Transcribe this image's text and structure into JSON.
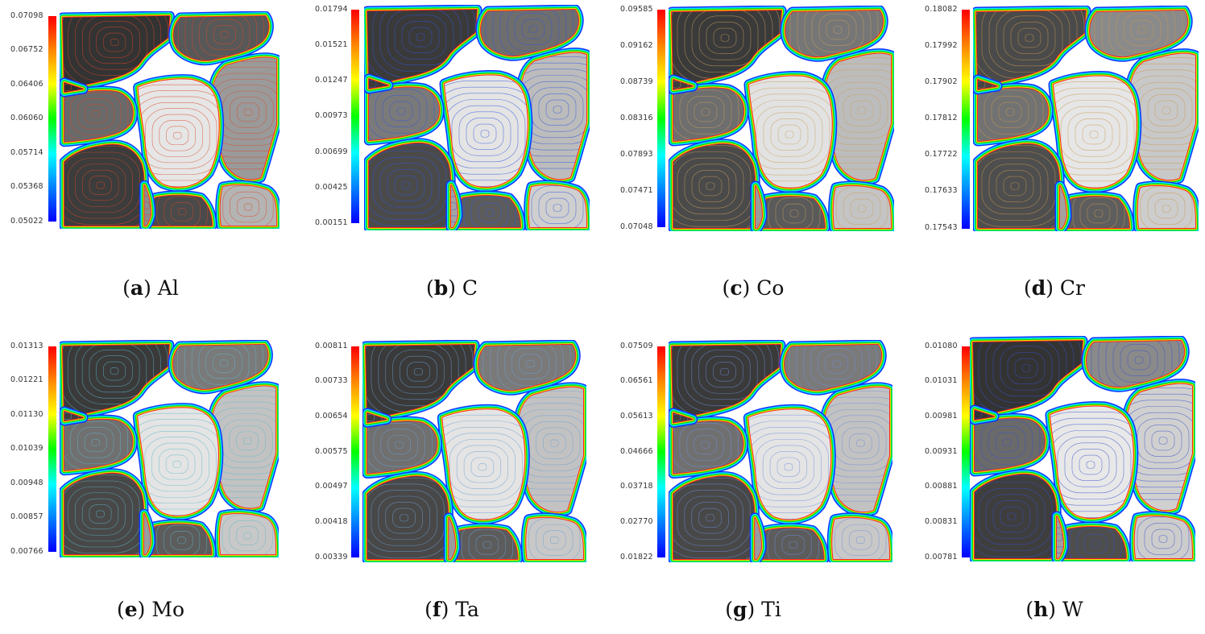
{
  "panels": [
    {
      "letter": "a",
      "element": "Al",
      "ticks": [
        "0.07098",
        "0.06752",
        "0.06406",
        "0.06060",
        "0.05714",
        "0.05368",
        "0.05022"
      ],
      "contour": "#d94a2a",
      "shades": [
        "#333333",
        "#585858",
        "#9a9a9a",
        "#e6e6e6",
        "#6a6a6a",
        "#3c3c3c",
        "#4a4a4a",
        "#b4b4b4",
        "#8e8e8e",
        "#2e2e2e"
      ]
    },
    {
      "letter": "b",
      "element": "C",
      "ticks": [
        "0.01794",
        "0.01521",
        "0.01247",
        "0.00973",
        "0.00699",
        "0.00425",
        "0.00151"
      ],
      "contour": "#3355dd",
      "shades": [
        "#3a3a3a",
        "#6e6e6e",
        "#bcbcbc",
        "#e4e4e4",
        "#7a7a7a",
        "#4a4a4a",
        "#5c5c5c",
        "#cfcfcf",
        "#a4a4a4",
        "#3a3a3a"
      ]
    },
    {
      "letter": "c",
      "element": "Co",
      "ticks": [
        "0.09585",
        "0.09162",
        "0.08739",
        "0.08316",
        "0.07893",
        "0.07471",
        "0.07048"
      ],
      "contour": "#c8a060",
      "shades": [
        "#3a3a3a",
        "#767676",
        "#bcbcbc",
        "#e2e2e2",
        "#6e6e6e",
        "#4a4a4a",
        "#5a5a5a",
        "#c4c4c4",
        "#9a9a9a",
        "#3e3e3e"
      ]
    },
    {
      "letter": "d",
      "element": "Cr",
      "ticks": [
        "0.18082",
        "0.17992",
        "0.17902",
        "0.17812",
        "0.17722",
        "0.17633",
        "0.17543"
      ],
      "contour": "#c89a50",
      "shades": [
        "#4a4a4a",
        "#8a8a8a",
        "#c8c8c8",
        "#e6e6e6",
        "#727272",
        "#4e4e4e",
        "#5e5e5e",
        "#cdcdcd",
        "#a2a2a2",
        "#444444"
      ]
    },
    {
      "letter": "e",
      "element": "Mo",
      "ticks": [
        "0.01313",
        "0.01221",
        "0.01130",
        "0.01039",
        "0.00948",
        "0.00857",
        "0.00766"
      ],
      "contour": "#5fb8c8",
      "shades": [
        "#3a3a3a",
        "#7a7a7a",
        "#c2c2c2",
        "#e4e4e4",
        "#707070",
        "#484848",
        "#5c5c5c",
        "#c8c8c8",
        "#9c9c9c",
        "#3e3e3e"
      ]
    },
    {
      "letter": "f",
      "element": "Ta",
      "ticks": [
        "0.00811",
        "0.00733",
        "0.00654",
        "0.00575",
        "0.00497",
        "0.00418",
        "0.00339"
      ],
      "contour": "#6fa0d0",
      "shades": [
        "#3a3a3a",
        "#7a7a7a",
        "#c2c2c2",
        "#e4e4e4",
        "#707070",
        "#484848",
        "#5c5c5c",
        "#c8c8c8",
        "#9c9c9c",
        "#3e3e3e"
      ]
    },
    {
      "letter": "g",
      "element": "Ti",
      "ticks": [
        "0.07509",
        "0.06561",
        "0.05613",
        "0.04666",
        "0.03718",
        "0.02770",
        "0.01822"
      ],
      "contour": "#6f8fd8",
      "shades": [
        "#3a3a3a",
        "#7a7a7a",
        "#c2c2c2",
        "#e4e4e4",
        "#707070",
        "#484848",
        "#5c5c5c",
        "#c8c8c8",
        "#9c9c9c",
        "#3e3e3e"
      ]
    },
    {
      "letter": "h",
      "element": "W",
      "ticks": [
        "0.01080",
        "0.01031",
        "0.00981",
        "0.00931",
        "0.00881",
        "0.00831",
        "0.00781"
      ],
      "contour": "#3a50cc",
      "shades": [
        "#333333",
        "#8a8a8a",
        "#d0d0d0",
        "#e8e8e8",
        "#6a6a6a",
        "#3e3e3e",
        "#4e4e4e",
        "#cccccc",
        "#a0a0a0",
        "#333333"
      ]
    }
  ]
}
